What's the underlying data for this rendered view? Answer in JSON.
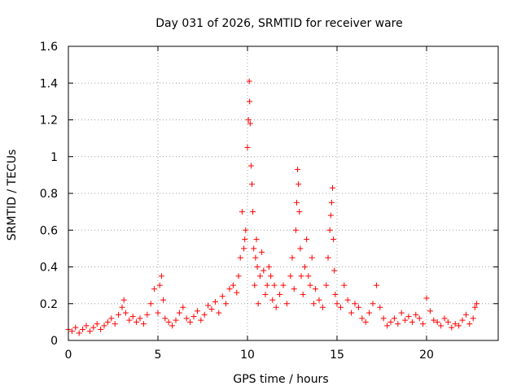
{
  "chart_data": {
    "type": "scatter",
    "title": "Day 031 of 2026, SRMTID for receiver ware",
    "xlabel": "GPS time / hours",
    "ylabel": "SRMTID / TECUs",
    "xlim": [
      0,
      24
    ],
    "ylim": [
      0,
      1.6
    ],
    "xticks": [
      0,
      5,
      10,
      15,
      20
    ],
    "yticks": [
      0,
      0.2,
      0.4,
      0.6,
      0.8,
      1,
      1.2,
      1.4,
      1.6
    ],
    "ytick_labels": [
      "0",
      "0.2",
      "0.4",
      "0.6",
      "0.8",
      "1",
      "1.2",
      "1.4",
      "1.6"
    ],
    "grid": true,
    "marker": "+",
    "color": "#ff0000",
    "series": [
      {
        "name": "SRMTID",
        "x": [
          0.0,
          0.2,
          0.4,
          0.6,
          0.8,
          1.0,
          1.2,
          1.4,
          1.6,
          1.8,
          2.0,
          2.2,
          2.4,
          2.6,
          2.8,
          3.0,
          3.1,
          3.2,
          3.4,
          3.6,
          3.8,
          4.0,
          4.2,
          4.4,
          4.6,
          4.8,
          5.0,
          5.1,
          5.2,
          5.3,
          5.4,
          5.6,
          5.8,
          6.0,
          6.2,
          6.4,
          6.6,
          6.8,
          7.0,
          7.2,
          7.4,
          7.6,
          7.8,
          8.0,
          8.2,
          8.4,
          8.6,
          8.8,
          9.0,
          9.2,
          9.4,
          9.5,
          9.6,
          9.7,
          9.8,
          9.85,
          9.9,
          10.0,
          10.05,
          10.1,
          10.12,
          10.15,
          10.2,
          10.25,
          10.3,
          10.35,
          10.4,
          10.45,
          10.5,
          10.55,
          10.6,
          10.7,
          10.8,
          10.9,
          11.0,
          11.1,
          11.2,
          11.3,
          11.4,
          11.5,
          11.6,
          11.8,
          12.0,
          12.2,
          12.4,
          12.5,
          12.6,
          12.7,
          12.75,
          12.8,
          12.85,
          12.9,
          12.95,
          13.0,
          13.1,
          13.2,
          13.3,
          13.4,
          13.5,
          13.6,
          13.7,
          13.8,
          14.0,
          14.2,
          14.4,
          14.5,
          14.6,
          14.65,
          14.7,
          14.75,
          14.8,
          14.85,
          14.9,
          15.0,
          15.2,
          15.4,
          15.6,
          15.8,
          16.0,
          16.2,
          16.4,
          16.6,
          16.8,
          17.0,
          17.2,
          17.4,
          17.6,
          17.8,
          18.0,
          18.2,
          18.4,
          18.6,
          18.8,
          19.0,
          19.2,
          19.4,
          19.6,
          19.8,
          20.0,
          20.2,
          20.4,
          20.6,
          20.8,
          21.0,
          21.2,
          21.4,
          21.6,
          21.8,
          22.0,
          22.2,
          22.4,
          22.6,
          22.7,
          22.8
        ],
        "y": [
          0.06,
          0.05,
          0.07,
          0.04,
          0.06,
          0.08,
          0.05,
          0.07,
          0.09,
          0.06,
          0.08,
          0.1,
          0.12,
          0.09,
          0.14,
          0.18,
          0.22,
          0.15,
          0.11,
          0.13,
          0.1,
          0.12,
          0.09,
          0.14,
          0.2,
          0.28,
          0.15,
          0.3,
          0.35,
          0.22,
          0.12,
          0.1,
          0.08,
          0.11,
          0.15,
          0.18,
          0.12,
          0.1,
          0.13,
          0.16,
          0.11,
          0.14,
          0.19,
          0.17,
          0.21,
          0.15,
          0.24,
          0.2,
          0.28,
          0.3,
          0.26,
          0.35,
          0.45,
          0.7,
          0.5,
          0.55,
          0.6,
          1.05,
          1.2,
          1.41,
          1.3,
          1.18,
          0.95,
          0.85,
          0.7,
          0.5,
          0.3,
          0.45,
          0.55,
          0.4,
          0.2,
          0.35,
          0.48,
          0.38,
          0.25,
          0.3,
          0.4,
          0.35,
          0.22,
          0.3,
          0.18,
          0.25,
          0.3,
          0.2,
          0.35,
          0.45,
          0.28,
          0.6,
          0.75,
          0.93,
          0.85,
          0.7,
          0.5,
          0.35,
          0.25,
          0.4,
          0.55,
          0.35,
          0.3,
          0.45,
          0.2,
          0.28,
          0.22,
          0.18,
          0.3,
          0.45,
          0.6,
          0.68,
          0.75,
          0.83,
          0.55,
          0.38,
          0.25,
          0.2,
          0.18,
          0.3,
          0.22,
          0.15,
          0.2,
          0.18,
          0.12,
          0.1,
          0.15,
          0.2,
          0.3,
          0.18,
          0.12,
          0.08,
          0.1,
          0.12,
          0.09,
          0.15,
          0.11,
          0.13,
          0.1,
          0.14,
          0.12,
          0.09,
          0.23,
          0.16,
          0.11,
          0.1,
          0.08,
          0.12,
          0.1,
          0.07,
          0.09,
          0.08,
          0.11,
          0.14,
          0.09,
          0.12,
          0.18,
          0.2
        ]
      }
    ]
  }
}
